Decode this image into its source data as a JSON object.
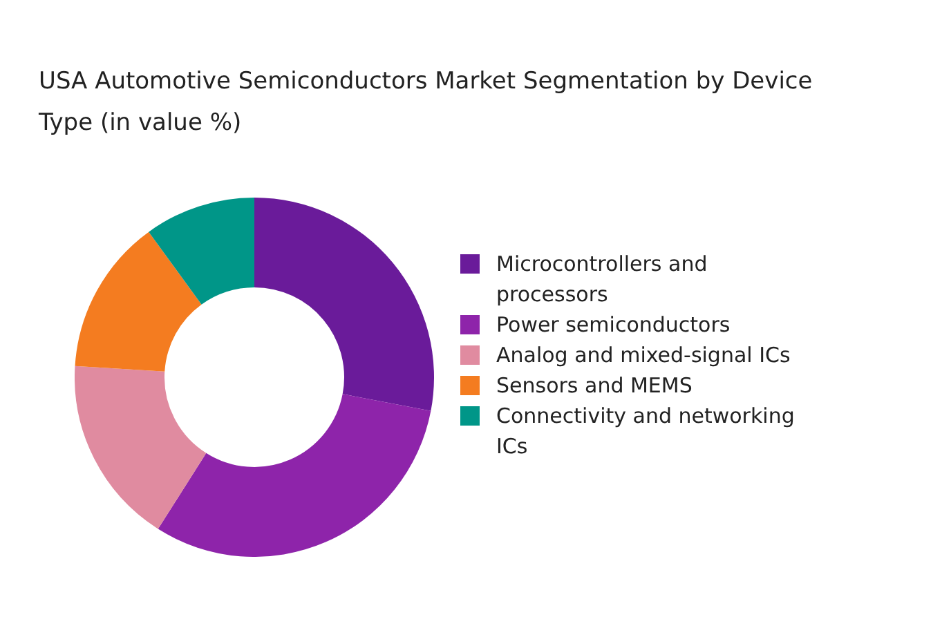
{
  "chart_data": {
    "type": "donut",
    "title": "USA Automotive Semiconductors Market Segmentation by Device Type (in value %)",
    "categories": [
      "Microcontrollers and processors",
      "Power semiconductors",
      "Analog and mixed-signal ICs",
      "Sensors and MEMS",
      "Connectivity and networking ICs"
    ],
    "values": [
      28,
      31,
      17,
      14,
      10
    ],
    "colors": [
      "#6a1b9a",
      "#8e24aa",
      "#e08ba0",
      "#f47c20",
      "#009688"
    ],
    "legend": "right"
  }
}
